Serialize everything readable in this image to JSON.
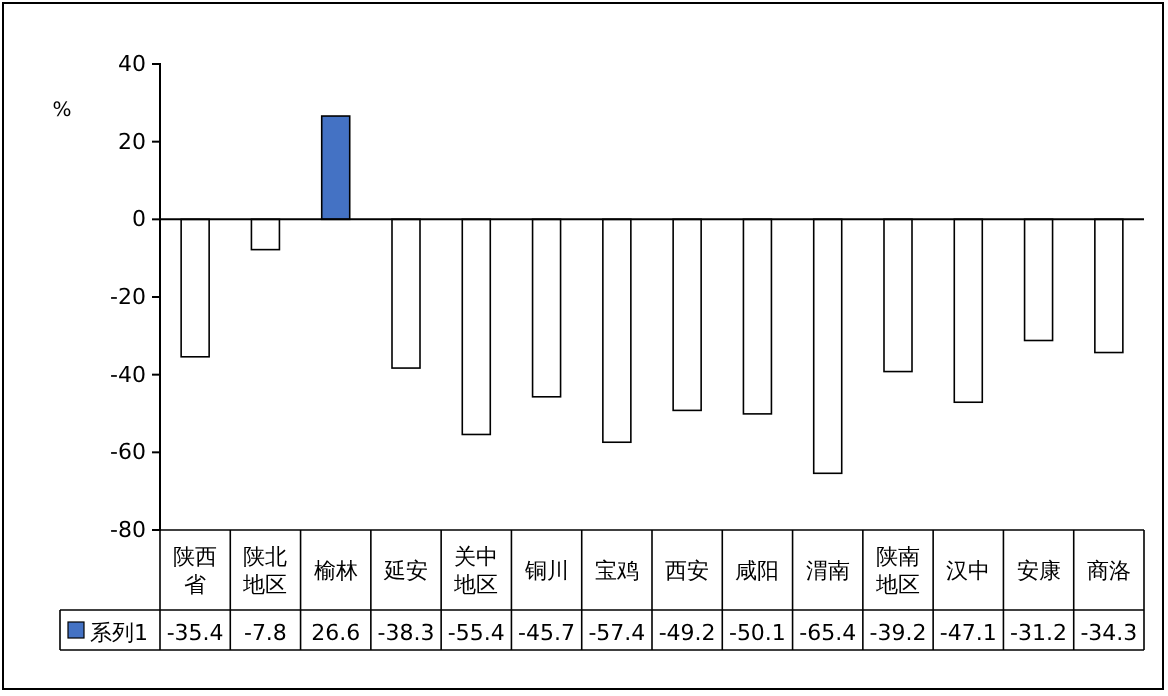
{
  "chart_data": {
    "type": "bar",
    "ylabel": "%",
    "categories": [
      "陕西省",
      "陕北地区",
      "榆林",
      "延安",
      "关中地区",
      "铜川",
      "宝鸡",
      "西安",
      "咸阳",
      "渭南",
      "陕南地区",
      "汉中",
      "安康",
      "商洛"
    ],
    "series": [
      {
        "name": "系列1",
        "color": "#4472c4",
        "colors": [
          "#ffffff",
          "#ffffff",
          "#4472c4",
          "#ffffff",
          "#ffffff",
          "#ffffff",
          "#ffffff",
          "#ffffff",
          "#ffffff",
          "#ffffff",
          "#ffffff",
          "#ffffff",
          "#ffffff",
          "#ffffff"
        ],
        "values": [
          -35.4,
          -7.8,
          26.6,
          -38.3,
          -55.4,
          -45.7,
          -57.4,
          -49.2,
          -50.1,
          -65.4,
          -39.2,
          -47.1,
          -31.2,
          -34.3
        ]
      }
    ],
    "ylim": [
      -80,
      40
    ],
    "yticks": [
      -80,
      -60,
      -40,
      -20,
      0,
      20,
      40
    ],
    "data_labels": true,
    "legend": "bottom"
  }
}
